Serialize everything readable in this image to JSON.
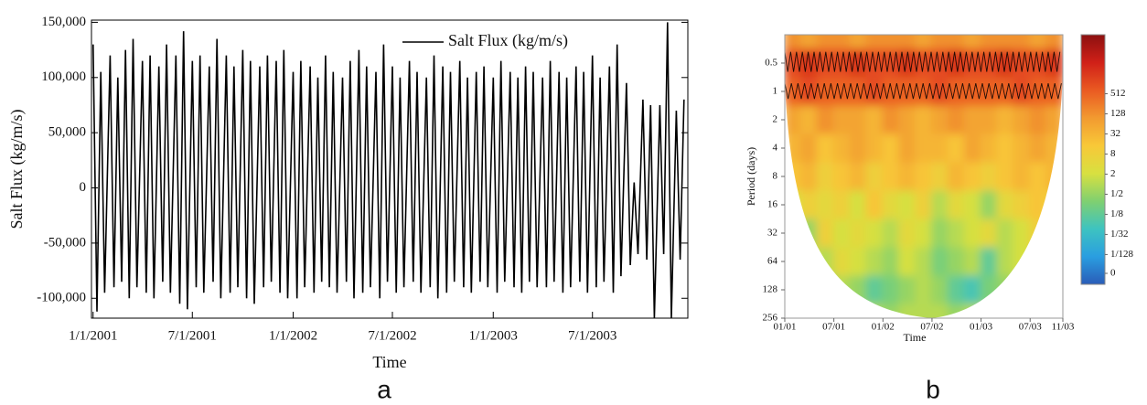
{
  "chart_data": [
    {
      "type": "line",
      "panel": "a",
      "xlabel": "Time",
      "ylabel": "Salt Flux (kg/m/s)",
      "legend": "top-right",
      "xlim": [
        "12/29/2000",
        "12/22/2003"
      ],
      "xticks": [
        "1/1/2001",
        "7/1/2001",
        "1/1/2002",
        "7/1/2002",
        "1/1/2003",
        "7/1/2003"
      ],
      "ylim": [
        -118000,
        152000
      ],
      "yticks": [
        {
          "value": -100000,
          "label": "-100,000"
        },
        {
          "value": -50000,
          "label": "-50,000"
        },
        0,
        {
          "value": 50000,
          "label": "50,000"
        },
        {
          "value": 100000,
          "label": "100,000"
        },
        {
          "value": 150000,
          "label": "150,000"
        }
      ],
      "x": [
        "1/1/2001",
        "1/8/2001",
        "1/15/2001",
        "1/22/2001",
        "2/1/2001",
        "2/8/2001",
        "2/15/2001",
        "2/22/2001",
        "3/1/2001",
        "3/8/2001",
        "3/15/2001",
        "3/22/2001",
        "4/1/2001",
        "4/8/2001",
        "4/15/2001",
        "4/22/2001",
        "5/1/2001",
        "5/8/2001",
        "5/15/2001",
        "5/22/2001",
        "6/1/2001",
        "6/8/2001",
        "6/15/2001",
        "6/22/2001",
        "7/1/2001",
        "7/8/2001",
        "7/15/2001",
        "7/22/2001",
        "8/1/2001",
        "8/8/2001",
        "8/15/2001",
        "8/22/2001",
        "9/1/2001",
        "9/8/2001",
        "9/15/2001",
        "9/22/2001",
        "10/1/2001",
        "10/8/2001",
        "10/15/2001",
        "10/22/2001",
        "11/1/2001",
        "11/8/2001",
        "11/15/2001",
        "11/22/2001",
        "12/1/2001",
        "12/8/2001",
        "12/15/2001",
        "12/22/2001",
        "1/1/2002",
        "1/8/2002",
        "1/15/2002",
        "1/22/2002",
        "2/1/2002",
        "2/8/2002",
        "2/15/2002",
        "2/22/2002",
        "3/1/2002",
        "3/8/2002",
        "3/15/2002",
        "3/22/2002",
        "4/1/2002",
        "4/8/2002",
        "4/15/2002",
        "4/22/2002",
        "5/1/2002",
        "5/8/2002",
        "5/15/2002",
        "5/22/2002",
        "6/1/2002",
        "6/8/2002",
        "6/15/2002",
        "6/22/2002",
        "7/1/2002",
        "7/8/2002",
        "7/15/2002",
        "7/22/2002",
        "8/1/2002",
        "8/8/2002",
        "8/15/2002",
        "8/22/2002",
        "9/1/2002",
        "9/8/2002",
        "9/15/2002",
        "9/22/2002",
        "10/1/2002",
        "10/8/2002",
        "10/15/2002",
        "10/22/2002",
        "11/1/2002",
        "11/8/2002",
        "11/15/2002",
        "11/22/2002",
        "12/1/2002",
        "12/8/2002",
        "12/15/2002",
        "12/22/2002",
        "1/1/2003",
        "1/8/2003",
        "1/15/2003",
        "1/22/2003",
        "2/1/2003",
        "2/8/2003",
        "2/15/2003",
        "2/22/2003",
        "3/1/2003",
        "3/8/2003",
        "3/15/2003",
        "3/22/2003",
        "4/1/2003",
        "4/8/2003",
        "4/15/2003",
        "4/22/2003",
        "5/1/2003",
        "5/8/2003",
        "5/15/2003",
        "5/22/2003",
        "6/1/2003",
        "6/8/2003",
        "6/15/2003",
        "6/22/2003",
        "7/1/2003",
        "7/8/2003",
        "7/15/2003",
        "7/22/2003",
        "8/1/2003",
        "8/8/2003",
        "8/15/2003",
        "8/22/2003",
        "9/1/2003",
        "9/8/2003",
        "9/15/2003",
        "9/22/2003",
        "10/1/2003",
        "10/8/2003",
        "10/15/2003",
        "10/22/2003",
        "11/1/2003",
        "11/8/2003",
        "11/15/2003",
        "11/22/2003",
        "12/1/2003",
        "12/8/2003",
        "12/15/2003"
      ],
      "series": [
        {
          "name": "Salt Flux (kg/m/s)",
          "color": "#000000",
          "values": [
            130000,
            -112000,
            105000,
            -95000,
            120000,
            -90000,
            100000,
            -85000,
            125000,
            -100000,
            135000,
            -90000,
            115000,
            -95000,
            120000,
            -100000,
            110000,
            -85000,
            130000,
            -95000,
            120000,
            -105000,
            142000,
            -110000,
            115000,
            -90000,
            120000,
            -95000,
            110000,
            -85000,
            135000,
            -100000,
            120000,
            -95000,
            110000,
            -90000,
            125000,
            -100000,
            115000,
            -105000,
            110000,
            -90000,
            120000,
            -85000,
            115000,
            -95000,
            125000,
            -100000,
            105000,
            -100000,
            115000,
            -90000,
            110000,
            -95000,
            100000,
            -85000,
            120000,
            -90000,
            105000,
            -95000,
            100000,
            -85000,
            115000,
            -100000,
            125000,
            -95000,
            110000,
            -90000,
            105000,
            -100000,
            130000,
            -85000,
            110000,
            -95000,
            100000,
            -90000,
            115000,
            -85000,
            105000,
            -95000,
            100000,
            -90000,
            120000,
            -100000,
            110000,
            -95000,
            105000,
            -85000,
            115000,
            -90000,
            100000,
            -95000,
            105000,
            -85000,
            110000,
            -90000,
            100000,
            -95000,
            115000,
            -85000,
            105000,
            -90000,
            100000,
            -95000,
            110000,
            -85000,
            105000,
            -90000,
            100000,
            -90000,
            115000,
            -85000,
            105000,
            -95000,
            100000,
            -90000,
            110000,
            -85000,
            105000,
            -95000,
            120000,
            -90000,
            100000,
            -85000,
            110000,
            -95000,
            130000,
            -80000,
            95000,
            -70000,
            5000,
            -60000,
            80000,
            -65000,
            75000,
            -118000,
            75000,
            -60000,
            150000,
            -118000,
            70000,
            -65000,
            80000
          ]
        }
      ]
    },
    {
      "type": "heatmap",
      "panel": "b",
      "xlabel": "Time",
      "ylabel": "Period (days)",
      "xlim": [
        0,
        34
      ],
      "xticks": [
        {
          "value": 0,
          "label": "01/01"
        },
        {
          "value": 6,
          "label": "07/01"
        },
        {
          "value": 12,
          "label": "01/02"
        },
        {
          "value": 18,
          "label": "07/02"
        },
        {
          "value": 24,
          "label": "01/03"
        },
        {
          "value": 30,
          "label": "07/03"
        },
        {
          "value": 34,
          "label": "11/03"
        }
      ],
      "ylim": [
        0.25,
        256
      ],
      "log_y": true,
      "y_inverted": true,
      "yticks": [
        0.5,
        1,
        2,
        4,
        8,
        16,
        32,
        64,
        128,
        256
      ],
      "x": [
        1,
        3,
        5,
        7,
        9,
        11,
        13,
        15,
        17,
        19,
        21,
        23,
        25,
        27,
        29,
        31,
        33
      ],
      "y": [
        0.25,
        0.5,
        1,
        2,
        4,
        8,
        16,
        32,
        64,
        128,
        256
      ],
      "values": [
        [
          128,
          64,
          128,
          128,
          64,
          128,
          128,
          128,
          64,
          128,
          128,
          64,
          128,
          128,
          128,
          64,
          128
        ],
        [
          1024,
          2048,
          1024,
          1024,
          2048,
          1024,
          1024,
          2048,
          1024,
          1024,
          2048,
          1024,
          1024,
          2048,
          1024,
          1024,
          2048
        ],
        [
          512,
          1024,
          512,
          512,
          512,
          1024,
          512,
          512,
          512,
          1024,
          512,
          512,
          512,
          512,
          1024,
          512,
          512
        ],
        [
          64,
          32,
          128,
          64,
          64,
          32,
          128,
          64,
          32,
          64,
          128,
          64,
          64,
          32,
          64,
          128,
          64
        ],
        [
          32,
          64,
          16,
          32,
          64,
          32,
          16,
          64,
          32,
          32,
          16,
          64,
          32,
          16,
          32,
          64,
          32
        ],
        [
          16,
          32,
          8,
          16,
          32,
          8,
          16,
          32,
          16,
          8,
          32,
          16,
          8,
          16,
          32,
          16,
          32
        ],
        [
          2,
          8,
          4,
          8,
          2,
          16,
          4,
          2,
          8,
          1,
          4,
          2,
          0.5,
          4,
          8,
          16,
          8
        ],
        [
          4,
          0.5,
          8,
          2,
          4,
          2,
          1,
          4,
          2,
          0.5,
          1,
          2,
          4,
          1,
          2,
          8,
          16
        ],
        [
          4,
          2,
          1,
          4,
          2,
          1,
          0.5,
          2,
          1,
          0.25,
          0.5,
          1,
          0.125,
          1,
          2,
          2,
          4
        ],
        [
          2,
          1,
          0.5,
          1,
          0.5,
          0.125,
          0.25,
          0.5,
          1,
          0.5,
          0.125,
          0.0625,
          0.25,
          0.5,
          1,
          2,
          2
        ],
        [
          1,
          1,
          1,
          1,
          1,
          1,
          0.5,
          1,
          1,
          1,
          0.5,
          1,
          1,
          1,
          1,
          1,
          1
        ]
      ],
      "colorbar": {
        "zlim": [
          0.001,
          30000
        ],
        "log": true,
        "ticks": [
          512,
          128,
          32,
          8,
          2,
          {
            "value": 0.5,
            "label": "1/2"
          },
          {
            "value": 0.125,
            "label": "1/8"
          },
          {
            "value": 0.03125,
            "label": "1/32"
          },
          {
            "value": 0.0078125,
            "label": "1/128"
          },
          0
        ]
      },
      "colormap": [
        "#2a5cb8",
        "#2a9ee0",
        "#3ec3c0",
        "#80d070",
        "#d8e040",
        "#f8c838",
        "#f29a30",
        "#ea5a22",
        "#d02018",
        "#8c1010"
      ]
    }
  ]
}
